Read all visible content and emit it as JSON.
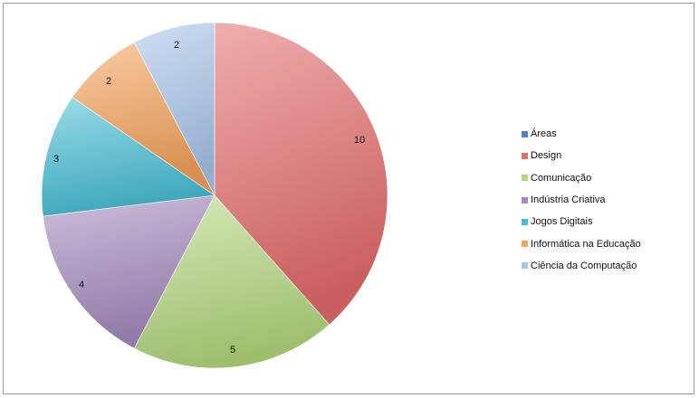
{
  "chart_data": {
    "type": "pie",
    "title": "",
    "legend_position": "right",
    "legend_title": "Áreas",
    "legend_title_color": "#4f81bd",
    "categories": [
      "Design",
      "Comunicação",
      "Indústria Criativa",
      "Jogos Digitais",
      "Informática na Educação",
      "Ciência da Computação"
    ],
    "values": [
      10,
      5,
      4,
      3,
      2,
      2
    ],
    "data_labels": [
      "10",
      "5",
      "4",
      "3",
      "2",
      "2"
    ],
    "colors": [
      "#e46c6c",
      "#b5d97e",
      "#a58bbf",
      "#48bfd6",
      "#f6a25a",
      "#a9c6eb"
    ],
    "label_colors": [
      "#111111",
      "#111111",
      "#111111",
      "#111111",
      "#111111",
      "#111111"
    ]
  }
}
